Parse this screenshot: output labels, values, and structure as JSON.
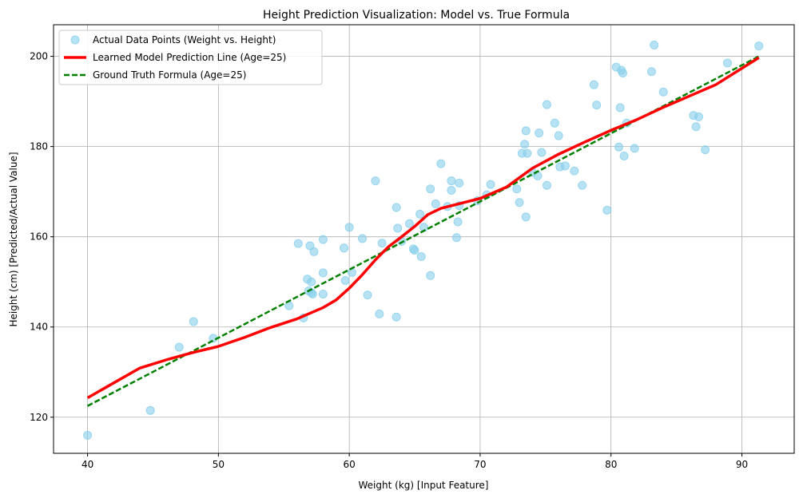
{
  "chart_data": {
    "type": "scatter",
    "title": "Height Prediction Visualization: Model vs. True Formula",
    "xlabel": "Weight (kg) [Input Feature]",
    "ylabel": "Height (cm) [Predicted/Actual Value]",
    "xlim": [
      37.4,
      94.0
    ],
    "ylim": [
      112,
      207
    ],
    "xticks": [
      40,
      50,
      60,
      70,
      80,
      90
    ],
    "yticks": [
      120,
      140,
      160,
      180,
      200
    ],
    "grid": true,
    "legend_position": "top-left",
    "series": [
      {
        "name": "Actual Data Points (Weight vs. Height)",
        "kind": "scatter",
        "color": "#87ceeb",
        "points": [
          [
            40.0,
            116.0
          ],
          [
            44.8,
            121.5
          ],
          [
            47.0,
            135.5
          ],
          [
            48.1,
            141.2
          ],
          [
            49.6,
            137.5
          ],
          [
            55.4,
            144.7
          ],
          [
            56.1,
            158.5
          ],
          [
            56.5,
            142.0
          ],
          [
            56.8,
            150.6
          ],
          [
            56.9,
            148.0
          ],
          [
            57.0,
            158.0
          ],
          [
            57.1,
            147.6
          ],
          [
            57.1,
            150.0
          ],
          [
            57.2,
            147.3
          ],
          [
            57.3,
            156.7
          ],
          [
            58.0,
            159.4
          ],
          [
            58.0,
            152.0
          ],
          [
            58.0,
            147.3
          ],
          [
            59.6,
            157.5
          ],
          [
            59.7,
            150.3
          ],
          [
            60.0,
            162.1
          ],
          [
            60.2,
            152.1
          ],
          [
            61.0,
            159.6
          ],
          [
            61.4,
            147.1
          ],
          [
            62.0,
            172.4
          ],
          [
            62.3,
            142.9
          ],
          [
            62.5,
            158.6
          ],
          [
            63.6,
            166.5
          ],
          [
            63.6,
            142.2
          ],
          [
            63.7,
            161.9
          ],
          [
            64.0,
            159.0
          ],
          [
            64.6,
            162.9
          ],
          [
            64.9,
            157.3
          ],
          [
            65.0,
            157.0
          ],
          [
            65.4,
            165.0
          ],
          [
            65.5,
            155.6
          ],
          [
            65.7,
            162.1
          ],
          [
            66.2,
            151.4
          ],
          [
            66.2,
            170.6
          ],
          [
            66.6,
            167.3
          ],
          [
            67.0,
            176.2
          ],
          [
            67.5,
            166.7
          ],
          [
            67.8,
            172.4
          ],
          [
            67.8,
            170.3
          ],
          [
            68.2,
            159.8
          ],
          [
            68.3,
            163.3
          ],
          [
            68.4,
            171.9
          ],
          [
            68.4,
            166.9
          ],
          [
            69.8,
            168.0
          ],
          [
            70.5,
            169.3
          ],
          [
            70.8,
            171.6
          ],
          [
            72.8,
            170.6
          ],
          [
            73.0,
            167.6
          ],
          [
            73.2,
            178.5
          ],
          [
            73.4,
            180.5
          ],
          [
            73.5,
            183.5
          ],
          [
            73.5,
            164.4
          ],
          [
            73.6,
            178.5
          ],
          [
            74.0,
            174.3
          ],
          [
            74.4,
            173.5
          ],
          [
            74.5,
            183.0
          ],
          [
            74.7,
            178.7
          ],
          [
            75.1,
            189.3
          ],
          [
            75.1,
            171.4
          ],
          [
            75.7,
            185.2
          ],
          [
            76.0,
            182.4
          ],
          [
            76.1,
            175.5
          ],
          [
            76.5,
            175.7
          ],
          [
            77.2,
            174.6
          ],
          [
            77.8,
            171.4
          ],
          [
            78.7,
            193.7
          ],
          [
            78.9,
            189.2
          ],
          [
            79.7,
            165.9
          ],
          [
            80.4,
            197.6
          ],
          [
            80.6,
            179.9
          ],
          [
            80.7,
            188.6
          ],
          [
            80.8,
            196.9
          ],
          [
            80.9,
            196.3
          ],
          [
            81.0,
            177.9
          ],
          [
            81.2,
            185.2
          ],
          [
            81.8,
            179.6
          ],
          [
            83.1,
            196.6
          ],
          [
            83.3,
            202.5
          ],
          [
            84.0,
            192.1
          ],
          [
            86.3,
            186.9
          ],
          [
            86.5,
            184.4
          ],
          [
            86.7,
            186.6
          ],
          [
            87.2,
            179.3
          ],
          [
            88.9,
            198.5
          ],
          [
            91.3,
            202.3
          ]
        ]
      },
      {
        "name": "Learned Model Prediction Line (Age=25)",
        "kind": "line",
        "color": "#ff0000",
        "points": [
          [
            40.0,
            124.3
          ],
          [
            42.0,
            127.6
          ],
          [
            44.0,
            130.9
          ],
          [
            46.0,
            132.7
          ],
          [
            48.0,
            134.3
          ],
          [
            50.0,
            135.7
          ],
          [
            52.0,
            137.7
          ],
          [
            54.0,
            139.9
          ],
          [
            56.0,
            141.8
          ],
          [
            58.0,
            144.3
          ],
          [
            59.0,
            146.0
          ],
          [
            60.0,
            148.6
          ],
          [
            61.0,
            151.6
          ],
          [
            62.0,
            154.9
          ],
          [
            63.0,
            157.8
          ],
          [
            64.0,
            160.0
          ],
          [
            65.0,
            162.3
          ],
          [
            66.0,
            164.9
          ],
          [
            67.0,
            166.3
          ],
          [
            70.0,
            168.5
          ],
          [
            72.0,
            171.0
          ],
          [
            74.0,
            175.2
          ],
          [
            76.0,
            178.3
          ],
          [
            78.0,
            181.0
          ],
          [
            80.0,
            183.6
          ],
          [
            82.0,
            186.0
          ],
          [
            84.0,
            188.7
          ],
          [
            86.0,
            191.2
          ],
          [
            88.0,
            193.7
          ],
          [
            91.3,
            199.7
          ]
        ]
      },
      {
        "name": "Ground Truth Formula (Age=25)",
        "kind": "dashed-line",
        "color": "#008000",
        "points": [
          [
            40.0,
            122.5
          ],
          [
            91.3,
            200.0
          ]
        ]
      }
    ]
  }
}
